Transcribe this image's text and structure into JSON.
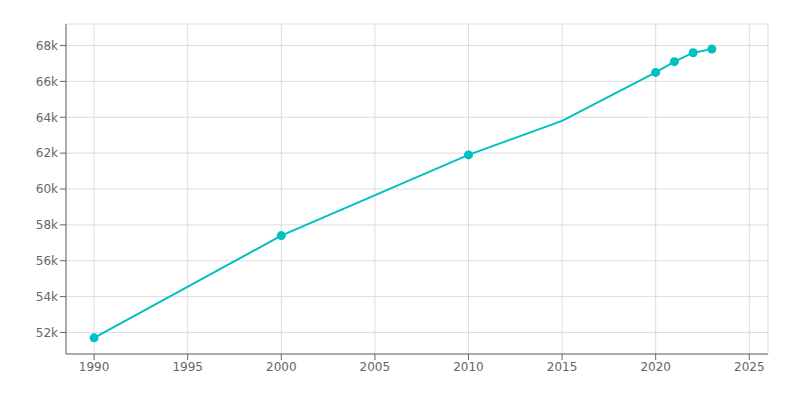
{
  "chart_data": {
    "type": "line",
    "series": [
      {
        "type": "line",
        "color": "#00C0C0",
        "x": [
          1990,
          2000,
          2010,
          2015,
          2020,
          2021,
          2022,
          2023
        ],
        "values": [
          51700,
          57400,
          61900,
          63800,
          66500,
          67100,
          67600,
          67800
        ]
      },
      {
        "type": "scatter",
        "marker": "circle",
        "color": "#00C0C0",
        "x": [
          1990,
          2000,
          2010,
          2020,
          2021,
          2022,
          2023
        ],
        "values": [
          51700,
          57400,
          61900,
          66500,
          67100,
          67600,
          67800
        ]
      }
    ],
    "xlim": [
      1988.5,
      2026
    ],
    "ylim": [
      50800,
      69200
    ],
    "xticks": [
      1990,
      1995,
      2000,
      2005,
      2010,
      2015,
      2020,
      2025
    ],
    "yticks": [
      {
        "value": 52000,
        "label": "52k"
      },
      {
        "value": 54000,
        "label": "54k"
      },
      {
        "value": 56000,
        "label": "56k"
      },
      {
        "value": 58000,
        "label": "58k"
      },
      {
        "value": 60000,
        "label": "60k"
      },
      {
        "value": 62000,
        "label": "62k"
      },
      {
        "value": 64000,
        "label": "64k"
      },
      {
        "value": 66000,
        "label": "66k"
      },
      {
        "value": 68000,
        "label": "68k"
      }
    ],
    "grid": true
  }
}
